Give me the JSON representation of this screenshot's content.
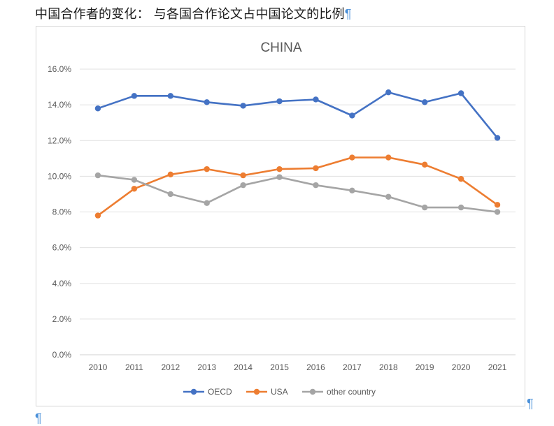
{
  "document": {
    "heading": "中国合作者的变化： 与各国合作论文占中国论文的比例",
    "paragraph_mark": "¶"
  },
  "chart_data": {
    "type": "line",
    "title": "CHINA",
    "xlabel": "",
    "ylabel": "",
    "categories": [
      "2010",
      "2011",
      "2012",
      "2013",
      "2014",
      "2015",
      "2016",
      "2017",
      "2018",
      "2019",
      "2020",
      "2021"
    ],
    "ylim": [
      0,
      16
    ],
    "yticks": [
      "0.0%",
      "2.0%",
      "4.0%",
      "6.0%",
      "8.0%",
      "10.0%",
      "12.0%",
      "14.0%",
      "16.0%"
    ],
    "y_unit": "%",
    "grid": true,
    "legend_position": "bottom",
    "series": [
      {
        "name": "OECD",
        "color": "#4472c4",
        "values": [
          13.8,
          14.5,
          14.5,
          14.15,
          13.95,
          14.2,
          14.3,
          13.4,
          14.7,
          14.15,
          14.65,
          12.15
        ]
      },
      {
        "name": "USA",
        "color": "#ed7d31",
        "values": [
          7.8,
          9.3,
          10.1,
          10.4,
          10.05,
          10.4,
          10.45,
          11.05,
          11.05,
          10.65,
          9.85,
          8.4
        ]
      },
      {
        "name": "other country",
        "color": "#a5a5a5",
        "values": [
          10.05,
          9.8,
          9.0,
          8.5,
          9.5,
          9.95,
          9.5,
          9.2,
          8.85,
          8.25,
          8.25,
          8.0
        ]
      }
    ]
  }
}
